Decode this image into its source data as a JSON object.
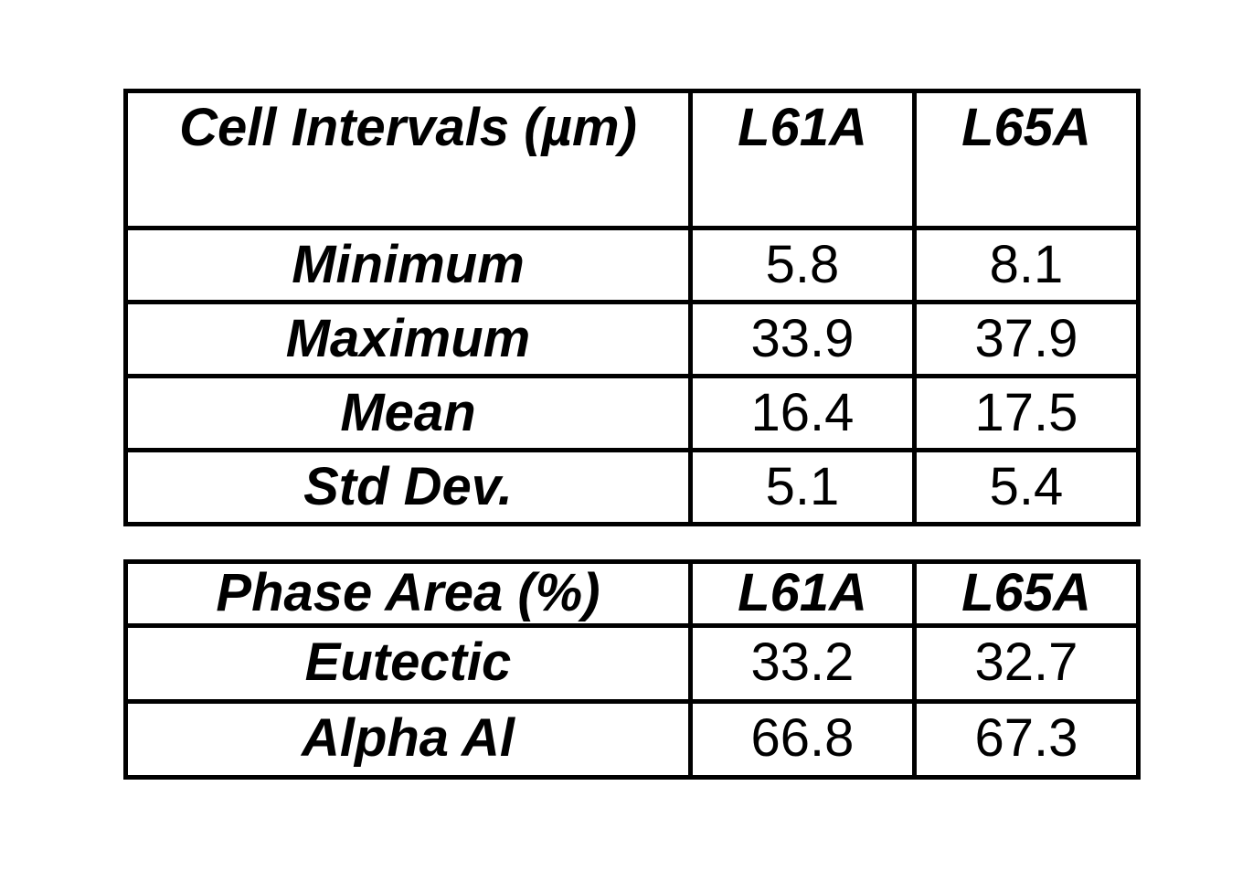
{
  "tables": [
    {
      "title": "Cell Intervals (µm)",
      "header": [
        "Cell Intervals (µm)",
        "L61A",
        "L65A"
      ],
      "rows": [
        {
          "label": "Minimum",
          "values": [
            "5.8",
            "8.1"
          ]
        },
        {
          "label": "Maximum",
          "values": [
            "33.9",
            "37.9"
          ]
        },
        {
          "label": "Mean",
          "values": [
            "16.4",
            "17.5"
          ]
        },
        {
          "label": "Std Dev.",
          "values": [
            "5.1",
            "5.4"
          ]
        }
      ]
    },
    {
      "title": "Phase Area (%)",
      "header": [
        "Phase Area (%)",
        "L61A",
        "L65A"
      ],
      "rows": [
        {
          "label": "Eutectic",
          "values": [
            "33.2",
            "32.7"
          ]
        },
        {
          "label": "Alpha Al",
          "values": [
            "66.8",
            "67.3"
          ]
        }
      ]
    }
  ],
  "chart_data": [
    {
      "type": "table",
      "title": "Cell Intervals (µm)",
      "columns": [
        "Cell Intervals (µm)",
        "L61A",
        "L65A"
      ],
      "rows": [
        [
          "Minimum",
          5.8,
          8.1
        ],
        [
          "Maximum",
          33.9,
          37.9
        ],
        [
          "Mean",
          16.4,
          17.5
        ],
        [
          "Std Dev.",
          5.1,
          5.4
        ]
      ]
    },
    {
      "type": "table",
      "title": "Phase Area (%)",
      "columns": [
        "Phase Area (%)",
        "L61A",
        "L65A"
      ],
      "rows": [
        [
          "Eutectic",
          33.2,
          32.7
        ],
        [
          "Alpha Al",
          66.8,
          67.3
        ]
      ]
    }
  ]
}
